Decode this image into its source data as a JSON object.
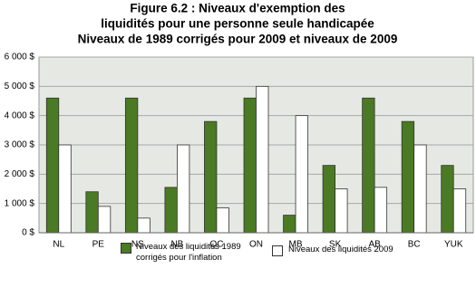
{
  "chart_data": {
    "type": "bar",
    "title": [
      "Figure 6.2 : Niveaux d'exemption des",
      "liquidités pour une personne seule handicapée",
      "Niveaux de 1989 corrigés pour 2009 et niveaux de 2009"
    ],
    "categories": [
      "NL",
      "PE",
      "NS",
      "NB",
      "QC",
      "ON",
      "MB",
      "SK",
      "AB",
      "BC",
      "YUK"
    ],
    "series": [
      {
        "name": "Niveaux des liquidités 1989 corrigés pour l'inflation",
        "color": "#4a7a23",
        "values": [
          4600,
          1400,
          4600,
          1550,
          3800,
          4600,
          600,
          2300,
          4600,
          3800,
          2300
        ]
      },
      {
        "name": "Niveaux des liquidités 2009",
        "color": "#ffffff",
        "values": [
          3000,
          900,
          500,
          3000,
          850,
          5000,
          4000,
          1500,
          1550,
          3000,
          1500
        ]
      }
    ],
    "ylim": [
      0,
      6000
    ],
    "yticks": [
      {
        "value": 0,
        "label": "0 $"
      },
      {
        "value": 1000,
        "label": "1 000 $"
      },
      {
        "value": 2000,
        "label": "2 000 $"
      },
      {
        "value": 3000,
        "label": "3 000 $"
      },
      {
        "value": 4000,
        "label": "4 000 $"
      },
      {
        "value": 5000,
        "label": "5 000 $"
      },
      {
        "value": 6000,
        "label": "6 000 $"
      }
    ],
    "grid": true
  }
}
